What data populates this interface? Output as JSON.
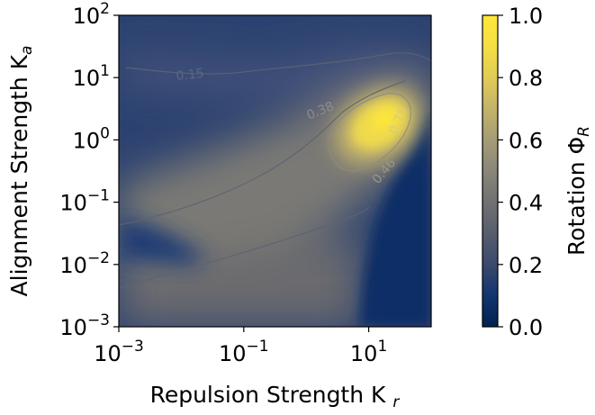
{
  "chart_data": {
    "type": "heatmap",
    "xlabel": "Repulsion Strength K",
    "xlabel_sub": "r",
    "ylabel": "Alignment Strength K",
    "ylabel_sub": "a",
    "colorbar_label": "Rotation Φ",
    "colorbar_label_sub": "R",
    "x_scale": "log",
    "y_scale": "log",
    "xlim": [
      0.001,
      100
    ],
    "ylim": [
      0.001,
      100
    ],
    "x_ticks": [
      {
        "value": 0.001,
        "base": "10",
        "exp": "−3"
      },
      {
        "value": 0.1,
        "base": "10",
        "exp": "−1"
      },
      {
        "value": 10,
        "base": "10",
        "exp": "1"
      }
    ],
    "y_ticks": [
      {
        "value": 0.001,
        "base": "10",
        "exp": "−3"
      },
      {
        "value": 0.01,
        "base": "10",
        "exp": "−2"
      },
      {
        "value": 0.1,
        "base": "10",
        "exp": "−1"
      },
      {
        "value": 1,
        "base": "10",
        "exp": "0"
      },
      {
        "value": 10,
        "base": "10",
        "exp": "1"
      },
      {
        "value": 100,
        "base": "10",
        "exp": "2"
      }
    ],
    "colorbar": {
      "range": [
        0.0,
        1.0
      ],
      "ticks": [
        "0.0",
        "0.2",
        "0.4",
        "0.6",
        "0.8",
        "1.0"
      ],
      "colormap": "cividis"
    },
    "contour_levels": [
      "0.15",
      "0.38",
      "0.46",
      "0.75"
    ],
    "hotspot": {
      "x": 10,
      "y": 2,
      "value": 1.0
    },
    "grid": false,
    "colors": {
      "low": "#00224e",
      "mid": "#7c7b78",
      "high": "#fee838"
    }
  }
}
